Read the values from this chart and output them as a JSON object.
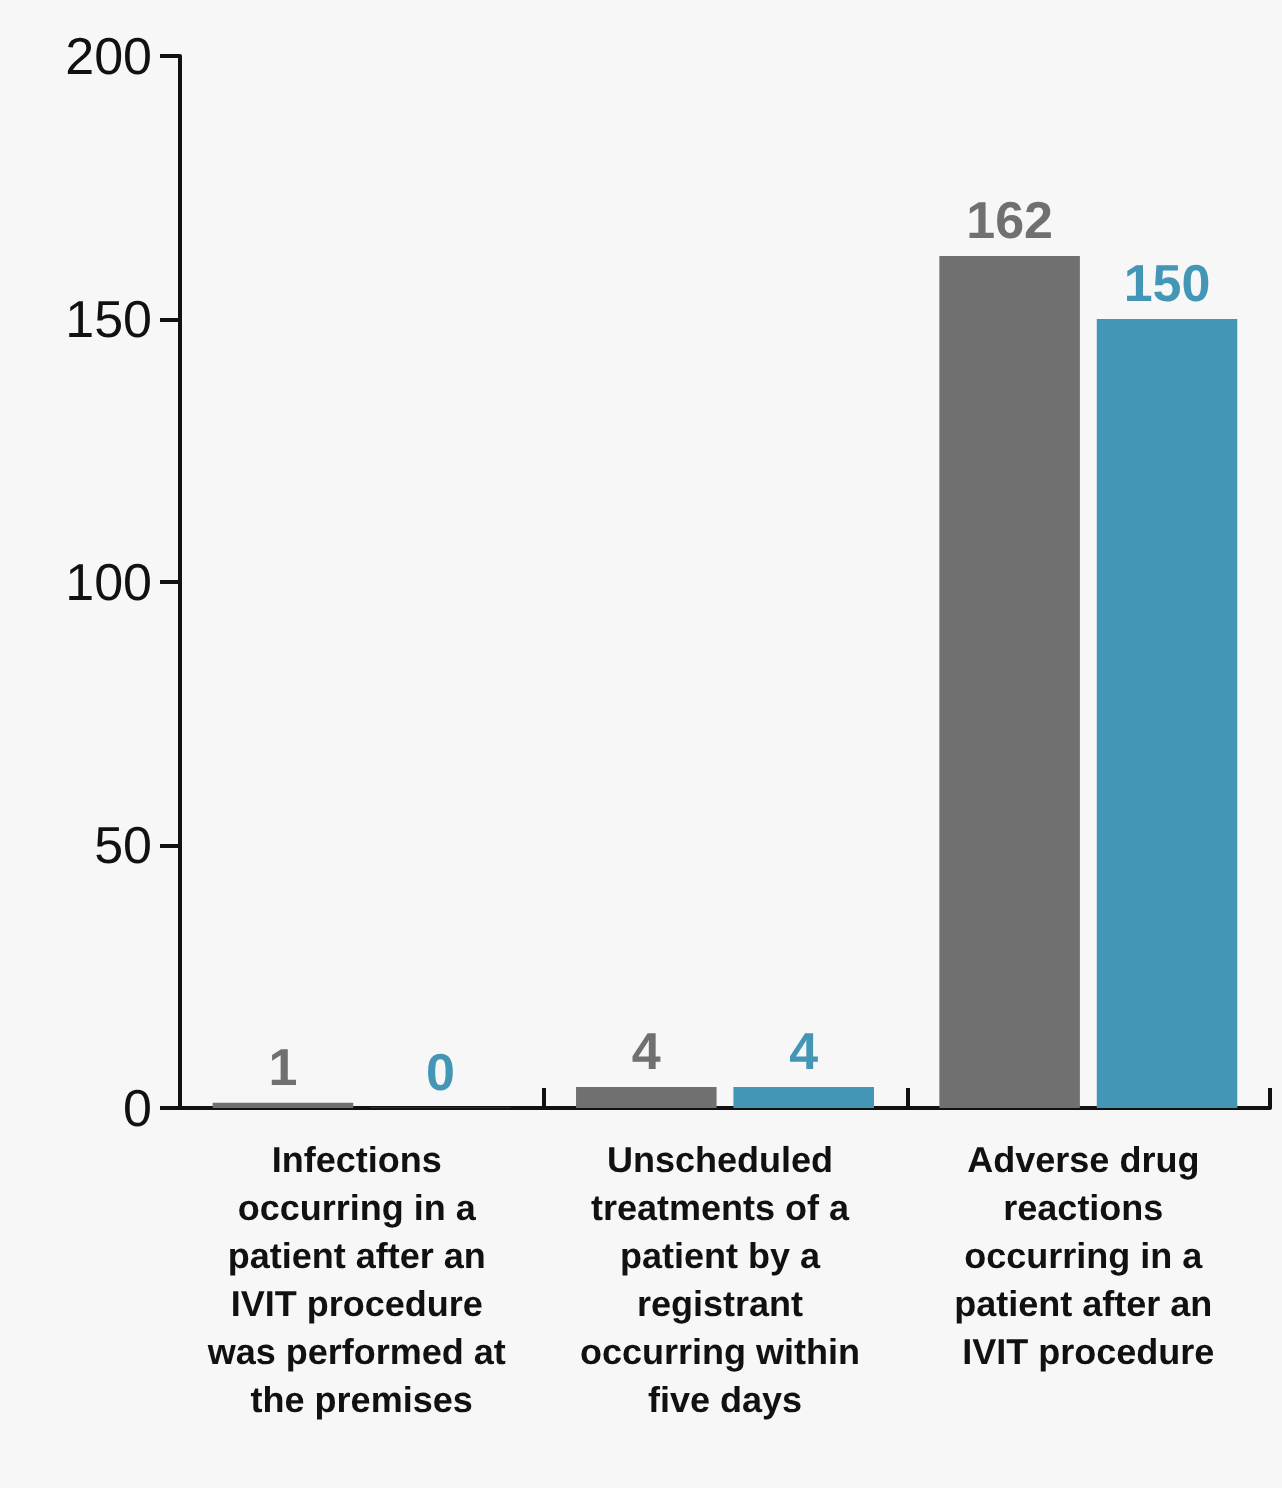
{
  "chart_data": {
    "type": "bar",
    "categories": [
      "Infections occurring in a patient after an IVIT procedure was performed at the premises",
      "Unscheduled treatments of a patient by a registrant occurring within five days",
      "Adverse drug reactions occurring in a patient after an IVIT procedure"
    ],
    "series": [
      {
        "color": "#707070",
        "values": [
          1,
          4,
          162
        ]
      },
      {
        "color": "#4396b5",
        "values": [
          0,
          4,
          150
        ]
      }
    ],
    "ylim": [
      0,
      200
    ],
    "yticks": [
      0,
      50,
      100,
      150,
      200
    ],
    "grid": false,
    "data_labels": true
  }
}
